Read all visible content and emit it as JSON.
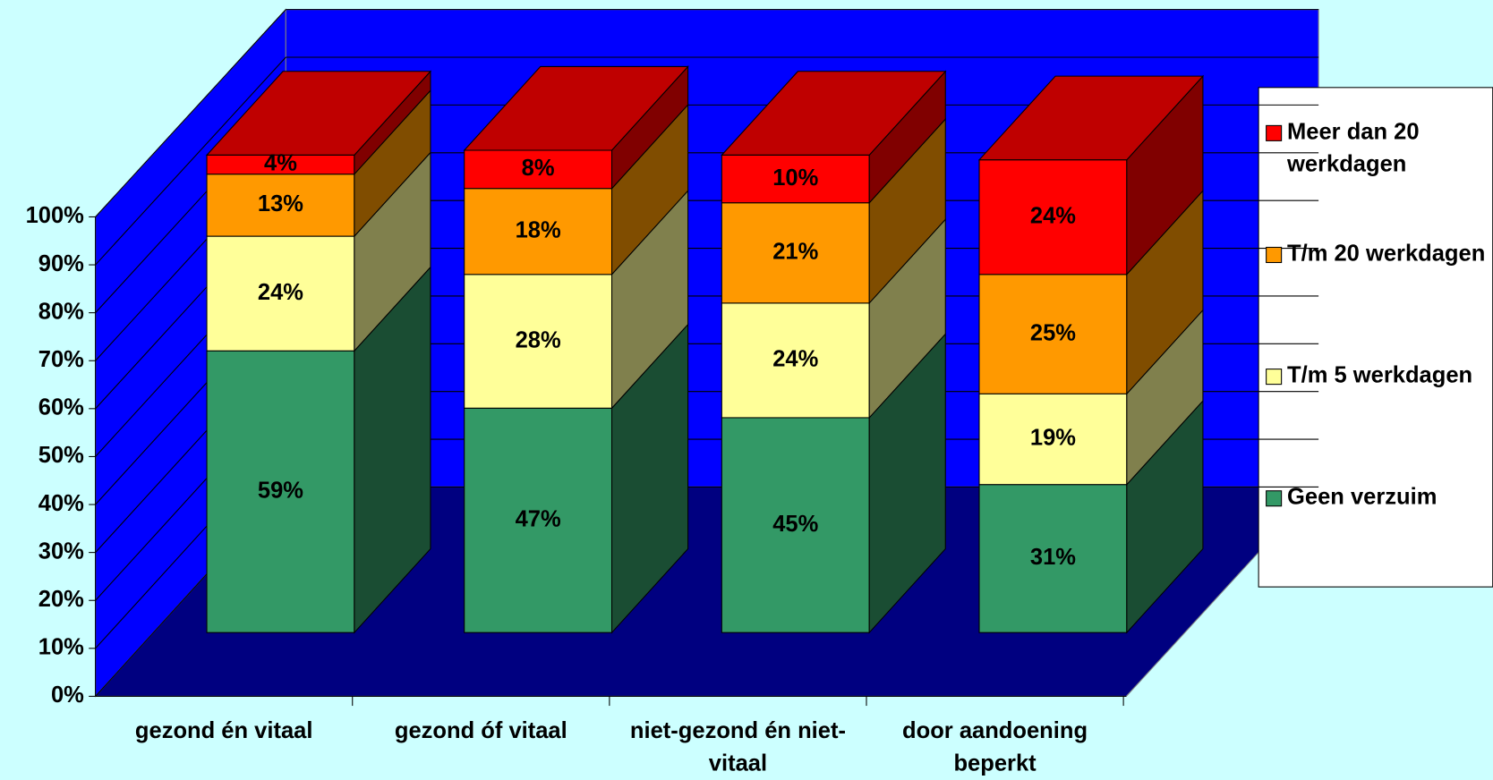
{
  "chart_data": {
    "type": "bar",
    "stacked": true,
    "three_d": true,
    "categories": [
      "gezond én vitaal",
      "gezond óf vitaal",
      "niet-gezond én niet-vitaal",
      "door aandoening beperkt"
    ],
    "series": [
      {
        "name": "Geen verzuim",
        "color": "#339966",
        "values": [
          59,
          47,
          45,
          31
        ],
        "value_labels": [
          "59%",
          "47%",
          "45%",
          "31%"
        ]
      },
      {
        "name": "T/m 5 werkdagen",
        "color": "#ffff99",
        "values": [
          24,
          28,
          24,
          19
        ],
        "value_labels": [
          "24%",
          "28%",
          "24%",
          "19%"
        ]
      },
      {
        "name": "T/m 20 werkdagen",
        "color": "#ff9900",
        "values": [
          13,
          18,
          21,
          25
        ],
        "value_labels": [
          "13%",
          "18%",
          "21%",
          "25%"
        ]
      },
      {
        "name": "Meer dan 20 werkdagen",
        "color": "#ff0000",
        "values": [
          4,
          8,
          10,
          24
        ],
        "value_labels": [
          "4%",
          "8%",
          "10%",
          "24%"
        ]
      }
    ],
    "ylim": [
      0,
      100
    ],
    "yticks": [
      {
        "value": 0,
        "label": "0%"
      },
      {
        "value": 10,
        "label": "10%"
      },
      {
        "value": 20,
        "label": "20%"
      },
      {
        "value": 30,
        "label": "30%"
      },
      {
        "value": 40,
        "label": "40%"
      },
      {
        "value": 50,
        "label": "50%"
      },
      {
        "value": 60,
        "label": "60%"
      },
      {
        "value": 70,
        "label": "70%"
      },
      {
        "value": 80,
        "label": "80%"
      },
      {
        "value": 90,
        "label": "90%"
      },
      {
        "value": 100,
        "label": "100%"
      }
    ],
    "grid": true,
    "legend": "right"
  }
}
